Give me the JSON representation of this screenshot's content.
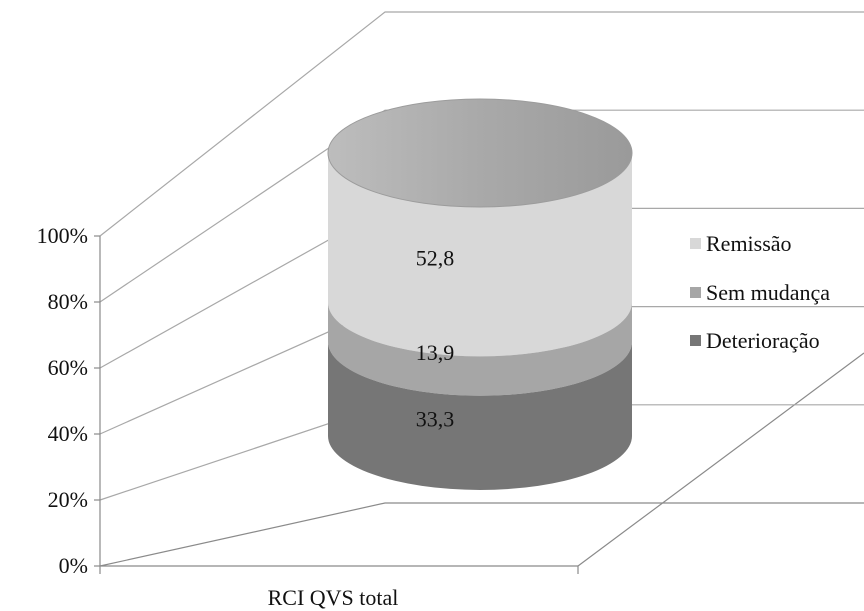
{
  "chart_data": {
    "type": "bar",
    "style": "3d-stacked-percent-cylinder",
    "categories": [
      "RCI QVS total"
    ],
    "series": [
      {
        "name": "Deterioração",
        "values": [
          33.3
        ],
        "color": "#767676",
        "label": "33,3"
      },
      {
        "name": "Sem mudança",
        "values": [
          13.9
        ],
        "color": "#a6a6a6",
        "label": "13,9"
      },
      {
        "name": "Remissão",
        "values": [
          52.8
        ],
        "color": "#d8d8d8",
        "label": "52,8"
      }
    ],
    "yticks": [
      "0%",
      "20%",
      "40%",
      "60%",
      "80%",
      "100%"
    ],
    "ylim": [
      0,
      100
    ],
    "grid": true,
    "legend": {
      "position": "right",
      "order": [
        "Remissão",
        "Sem mudança",
        "Deterioração"
      ]
    },
    "title": "",
    "xlabel": "",
    "ylabel": ""
  }
}
